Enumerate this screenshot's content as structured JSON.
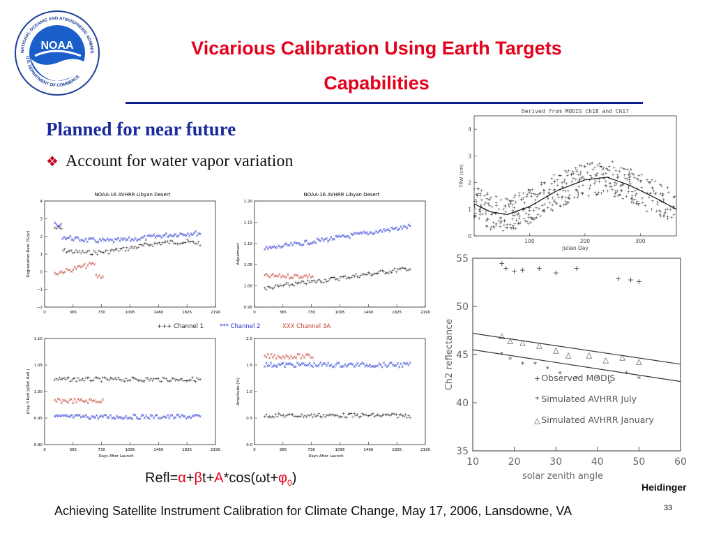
{
  "logo": {
    "center_text": "NOAA",
    "ring_top": "NATIONAL OCEANIC AND ATMOSPHERIC ADMINISTRATION",
    "ring_bottom": "U.S. DEPARTMENT OF COMMERCE",
    "colors": {
      "ring": "#1a3e9a",
      "inner": "#1a5fc9"
    }
  },
  "title": {
    "line1": "Vicarious Calibration Using Earth Targets",
    "line2": "Capabilities"
  },
  "subheading": "Planned for near future",
  "bullet": "Account for water vapor variation",
  "figure_left": {
    "top_title": "NOAA-16 AVHRR Libyan Desert",
    "x_ticks": [
      "0",
      "365",
      "730",
      "1095",
      "1460",
      "1825",
      "2190"
    ],
    "x_label": "Days After Launch",
    "legend": [
      "+++ Channel 1",
      "*** Channel 2",
      "XXX Channel 3A"
    ],
    "panels": [
      {
        "ylabel": "Degradation Rate (%/yr)",
        "yticks": [
          "4",
          "3",
          "2",
          "1",
          "0",
          "−1",
          "−2"
        ]
      },
      {
        "ylabel": "Adjustment",
        "yticks": [
          "1.20",
          "1.15",
          "1.10",
          "1.05",
          "1.00",
          "0.95"
        ]
      },
      {
        "ylabel": "(Day 0 Refl.)/(Ref. Refl.)",
        "yticks": [
          "1.10",
          "1.05",
          "1.00",
          "0.95",
          "0.90"
        ]
      },
      {
        "ylabel": "Amplitude (%)",
        "yticks": [
          "2.0",
          "1.5",
          "1.0",
          "0.5",
          "0.0"
        ]
      }
    ]
  },
  "chart_data": [
    {
      "type": "scatter",
      "title": "Derived from MODIS Ch18 and Ch17",
      "xlabel": "Julian Day",
      "ylabel": "TPW (cm)",
      "xticks": [
        "100",
        "200",
        "300"
      ],
      "yticks": [
        "0",
        "1",
        "2",
        "3",
        "4"
      ],
      "xlim": [
        0,
        365
      ],
      "ylim": [
        0,
        4.5
      ],
      "series": [
        {
          "values_fit": [
            [
              0,
              1.2
            ],
            [
              30,
              0.9
            ],
            [
              60,
              0.8
            ],
            [
              100,
              1.1
            ],
            [
              150,
              1.7
            ],
            [
              200,
              2.1
            ],
            [
              240,
              2.2
            ],
            [
              280,
              1.9
            ],
            [
              320,
              1.5
            ],
            [
              365,
              1.0
            ]
          ]
        }
      ]
    },
    {
      "type": "scatter",
      "xlabel": "solar zenith angle",
      "ylabel": "Ch2 reflectance",
      "xticks": [
        "10",
        "20",
        "30",
        "40",
        "50",
        "60"
      ],
      "yticks": [
        "35",
        "40",
        "45",
        "50",
        "55"
      ],
      "xlim": [
        10,
        60
      ],
      "ylim": [
        35,
        55
      ],
      "series": [
        {
          "name": "Observed MODIS",
          "values": [
            [
              17,
              54.5
            ],
            [
              18,
              54
            ],
            [
              20,
              53.7
            ],
            [
              22,
              53.8
            ],
            [
              26,
              54
            ],
            [
              30,
              53.5
            ],
            [
              35,
              54
            ],
            [
              45,
              52.9
            ],
            [
              48,
              52.8
            ],
            [
              50,
              52.6
            ]
          ]
        },
        {
          "name": "Simulated AVHRR July",
          "values": [
            [
              17,
              45
            ],
            [
              19,
              44.5
            ],
            [
              22,
              44
            ],
            [
              25,
              44
            ],
            [
              28,
              43.5
            ],
            [
              31,
              43
            ],
            [
              35,
              42.5
            ],
            [
              40,
              42.5
            ],
            [
              43,
              42
            ],
            [
              47,
              43
            ],
            [
              50,
              42.5
            ]
          ]
        },
        {
          "name": "Simulated AVHRR January",
          "values": [
            [
              17,
              47
            ],
            [
              19,
              46.5
            ],
            [
              22,
              46.3
            ],
            [
              26,
              46
            ],
            [
              30,
              45.5
            ],
            [
              33,
              45
            ],
            [
              38,
              45
            ],
            [
              42,
              44.5
            ],
            [
              46,
              44.8
            ],
            [
              50,
              44.3
            ]
          ]
        }
      ],
      "fits": [
        {
          "from": [
            10,
            47.2
          ],
          "to": [
            60,
            44.0
          ]
        },
        {
          "from": [
            10,
            45.5
          ],
          "to": [
            60,
            42.2
          ]
        }
      ]
    }
  ],
  "formula": {
    "prefix": "Refl=",
    "alpha": "α",
    "plus1": "+",
    "beta": "β",
    "t1": "t+",
    "A": "A",
    "rest": "*cos(ωt+",
    "phi": "φ",
    "sub": "0",
    "close": ")"
  },
  "credit": "Heidinger",
  "footer": "Achieving Satellite Instrument Calibration for Climate Change, May 17, 2006, Lansdowne, VA",
  "page_number": "33"
}
